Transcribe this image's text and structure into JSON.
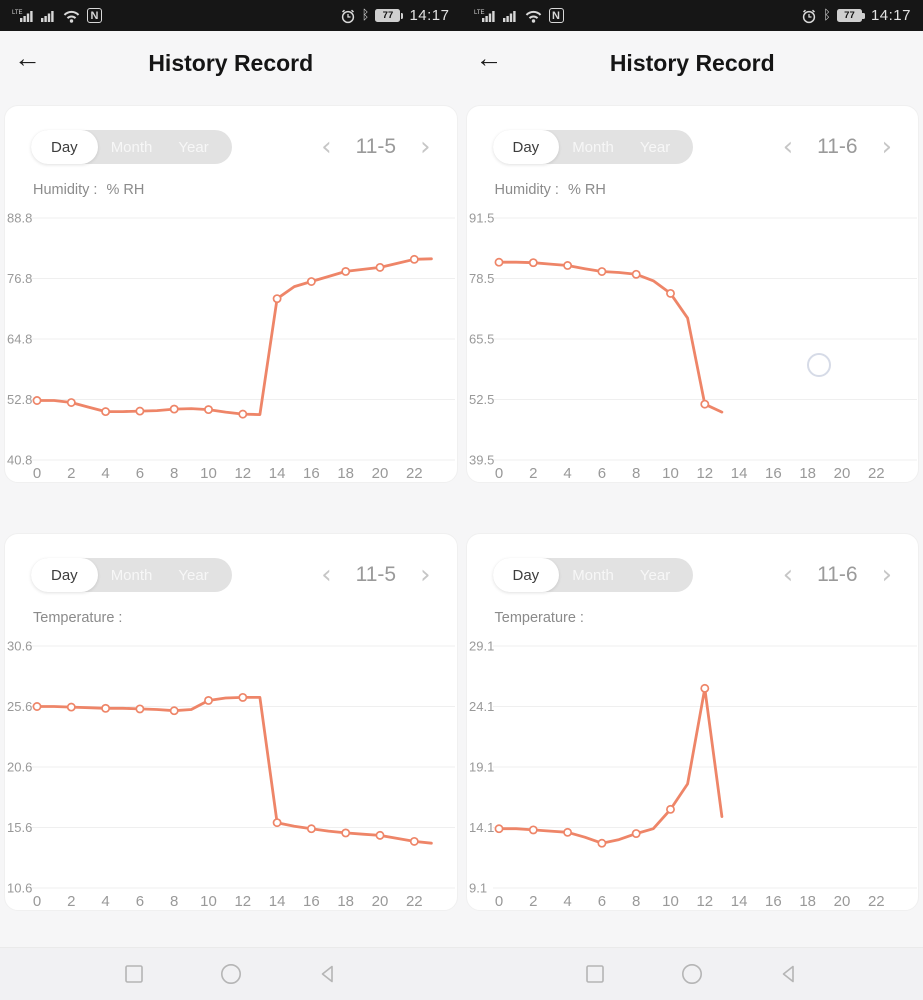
{
  "colors": {
    "line": "#ee8568",
    "grid": "#efefef",
    "tick_label": "#999999",
    "status_bar_bg": "#161616",
    "card_bg": "#ffffff",
    "page_bg": "#f4f4f6",
    "loading_ring": "#d6dbe7",
    "nav_icon": "#b5b5b5"
  },
  "status_bar": {
    "network_label": "LTE",
    "nfc_glyph": "N",
    "bluetooth_glyph": "ᛒ",
    "battery_percent": "77",
    "time": "14:17",
    "left_icons": [
      "lte-signal",
      "signal",
      "wifi",
      "nfc"
    ],
    "right_icons": [
      "alarm-clock",
      "bluetooth",
      "battery"
    ]
  },
  "icons": {
    "prev_glyph": "‹",
    "next_glyph": "›"
  },
  "nav_bar": {
    "icons": [
      "recents-square",
      "home-circle",
      "back-triangle"
    ]
  },
  "screens": [
    {
      "title": "History Record",
      "back_icon": "←",
      "cards": [
        {
          "tabs": [
            {
              "label": "Day",
              "selected": true
            },
            {
              "label": "Month",
              "selected": false
            },
            {
              "label": "Year",
              "selected": false
            }
          ],
          "date": "11-5",
          "metric_label": "Humidity :",
          "metric_unit": "% RH"
        },
        {
          "tabs": [
            {
              "label": "Day",
              "selected": true
            },
            {
              "label": "Month",
              "selected": false
            },
            {
              "label": "Year",
              "selected": false
            }
          ],
          "date": "11-5",
          "metric_label": "Temperature :",
          "metric_unit": ""
        }
      ]
    },
    {
      "title": "History Record",
      "back_icon": "←",
      "cards": [
        {
          "tabs": [
            {
              "label": "Day",
              "selected": true
            },
            {
              "label": "Month",
              "selected": false
            },
            {
              "label": "Year",
              "selected": false
            }
          ],
          "date": "11-6",
          "metric_label": "Humidity :",
          "metric_unit": "% RH"
        },
        {
          "tabs": [
            {
              "label": "Day",
              "selected": true
            },
            {
              "label": "Month",
              "selected": false
            },
            {
              "label": "Year",
              "selected": false
            }
          ],
          "date": "11-6",
          "metric_label": "Temperature :",
          "metric_unit": ""
        }
      ]
    }
  ],
  "chart_data": [
    {
      "type": "line",
      "title": "Humidity 11-5 (Day)",
      "xlabel": "",
      "ylabel": "% RH",
      "yticks": [
        88.8,
        76.8,
        64.8,
        52.8,
        40.8
      ],
      "ylim": [
        40.8,
        88.8
      ],
      "xticks": [
        0,
        2,
        4,
        6,
        8,
        10,
        12,
        14,
        16,
        18,
        20,
        22
      ],
      "grid": true,
      "legend": false,
      "x": [
        0,
        1,
        2,
        3,
        4,
        5,
        6,
        7,
        8,
        9,
        10,
        11,
        12,
        13,
        14,
        15,
        16,
        17,
        18,
        19,
        20,
        21,
        22,
        23
      ],
      "values": [
        52.6,
        52.6,
        52.2,
        51.3,
        50.4,
        50.4,
        50.5,
        50.6,
        50.9,
        51.0,
        50.8,
        50.3,
        49.9,
        49.8,
        72.8,
        75.2,
        76.2,
        77.2,
        78.2,
        78.6,
        79.0,
        79.8,
        80.6,
        80.7
      ]
    },
    {
      "type": "line",
      "title": "Temperature 11-5 (Day)",
      "xlabel": "",
      "ylabel": "",
      "yticks": [
        30.6,
        25.6,
        20.6,
        15.6,
        10.6
      ],
      "ylim": [
        10.6,
        30.6
      ],
      "xticks": [
        0,
        2,
        4,
        6,
        8,
        10,
        12,
        14,
        16,
        18,
        20,
        22
      ],
      "grid": true,
      "legend": false,
      "x": [
        0,
        1,
        2,
        3,
        4,
        5,
        6,
        7,
        8,
        9,
        10,
        11,
        12,
        13,
        14,
        15,
        16,
        17,
        18,
        19,
        20,
        21,
        22,
        23
      ],
      "values": [
        25.6,
        25.6,
        25.55,
        25.5,
        25.45,
        25.45,
        25.4,
        25.35,
        25.25,
        25.35,
        26.1,
        26.3,
        26.35,
        26.35,
        16.0,
        15.7,
        15.5,
        15.3,
        15.15,
        15.05,
        14.95,
        14.7,
        14.45,
        14.3
      ]
    },
    {
      "type": "line",
      "title": "Humidity 11-6 (Day)",
      "xlabel": "",
      "ylabel": "% RH",
      "yticks": [
        91.5,
        78.5,
        65.5,
        52.5,
        39.5
      ],
      "ylim": [
        39.5,
        91.5
      ],
      "xticks": [
        0,
        2,
        4,
        6,
        8,
        10,
        12,
        14,
        16,
        18,
        20,
        22
      ],
      "grid": true,
      "legend": false,
      "x": [
        0,
        1,
        2,
        3,
        4,
        5,
        6,
        7,
        8,
        9,
        10,
        11,
        12,
        13
      ],
      "values": [
        82.0,
        82.0,
        81.9,
        81.6,
        81.3,
        80.6,
        80.0,
        79.8,
        79.4,
        78.0,
        75.3,
        70.0,
        51.5,
        49.8
      ]
    },
    {
      "type": "line",
      "title": "Temperature 11-6 (Day)",
      "xlabel": "",
      "ylabel": "",
      "yticks": [
        29.1,
        24.1,
        19.1,
        14.1,
        9.1
      ],
      "ylim": [
        9.1,
        29.1
      ],
      "xticks": [
        0,
        2,
        4,
        6,
        8,
        10,
        12,
        14,
        16,
        18,
        20,
        22
      ],
      "grid": true,
      "legend": false,
      "x": [
        0,
        1,
        2,
        3,
        4,
        5,
        6,
        7,
        8,
        9,
        10,
        11,
        12,
        13
      ],
      "values": [
        14.0,
        14.0,
        13.9,
        13.8,
        13.7,
        13.3,
        12.8,
        13.1,
        13.6,
        14.0,
        15.6,
        17.7,
        25.6,
        15.0
      ]
    }
  ]
}
